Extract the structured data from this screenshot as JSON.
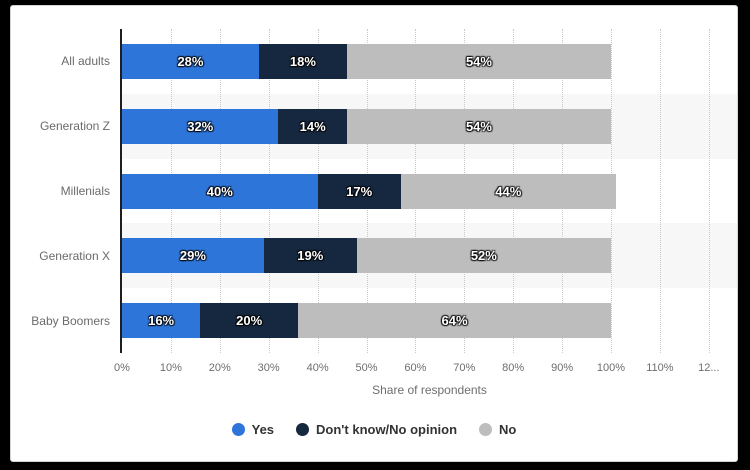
{
  "chart_data": {
    "type": "bar",
    "orientation": "horizontal",
    "stacked": true,
    "categories": [
      "All adults",
      "Generation Z",
      "Millenials",
      "Generation X",
      "Baby Boomers"
    ],
    "series": [
      {
        "name": "Yes",
        "color": "#2e75d9",
        "values": [
          28,
          32,
          40,
          29,
          16
        ]
      },
      {
        "name": "Don't know/No opinion",
        "color": "#16283f",
        "values": [
          18,
          14,
          17,
          19,
          20
        ]
      },
      {
        "name": "No",
        "color": "#bdbdbd",
        "values": [
          54,
          54,
          44,
          52,
          64
        ]
      }
    ],
    "value_suffix": "%",
    "xlabel": "Share of respondents",
    "x_ticks": [
      "0%",
      "10%",
      "20%",
      "30%",
      "40%",
      "50%",
      "60%",
      "70%",
      "80%",
      "90%",
      "100%",
      "110%",
      "12..."
    ],
    "xlim": [
      0,
      120
    ],
    "tick_step": 10,
    "grid": "vertical-dotted",
    "legend_position": "bottom-center",
    "plot_band_alt_color": "#f7f7f7",
    "axis_line_color": "#1e1e1e"
  }
}
